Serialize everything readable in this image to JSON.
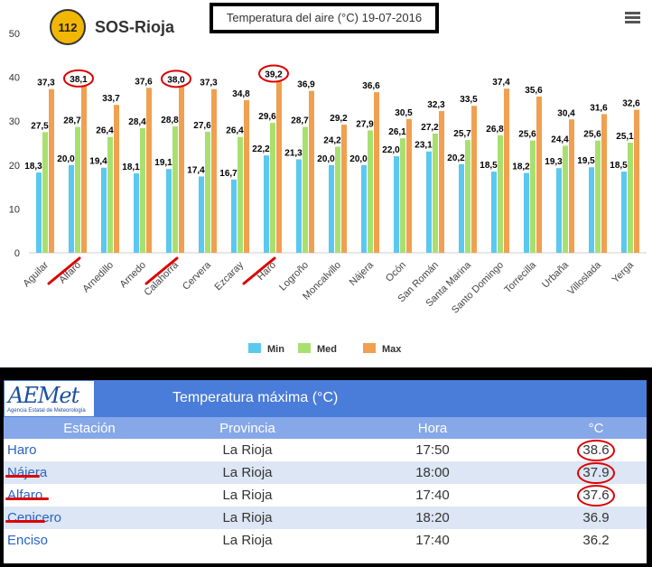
{
  "chart_data": {
    "type": "bar",
    "title": "Temperatura del aire (°C) 19-07-2016",
    "categories": [
      "Aguilar",
      "Alfaro",
      "Arnedillo",
      "Arnedo",
      "Calahorra",
      "Cervera",
      "Ezcaray",
      "Haro",
      "Logroño",
      "Moncalvillo",
      "Nájera",
      "Ocón",
      "San Román",
      "Santa Marina",
      "Santo Domingo",
      "Torrecilla",
      "Urbaña",
      "Villoslada",
      "Yerga"
    ],
    "series": [
      {
        "name": "Min",
        "color": "#5bc8f0",
        "values": [
          18.3,
          20.0,
          19.4,
          18.1,
          19.1,
          17.4,
          16.7,
          22.2,
          21.3,
          20.0,
          20.0,
          22.0,
          23.1,
          20.2,
          18.5,
          18.2,
          19.3,
          19.5,
          18.5
        ]
      },
      {
        "name": "Med",
        "color": "#a8e070",
        "values": [
          27.5,
          28.7,
          26.4,
          28.4,
          28.8,
          27.6,
          26.4,
          29.6,
          28.7,
          24.2,
          27.9,
          26.1,
          27.2,
          25.7,
          26.8,
          25.6,
          24.4,
          25.6,
          25.1
        ]
      },
      {
        "name": "Max",
        "color": "#f0a050",
        "values": [
          37.3,
          38.1,
          33.7,
          37.6,
          38.0,
          37.3,
          34.8,
          39.2,
          36.9,
          29.2,
          36.6,
          30.5,
          32.3,
          33.5,
          37.4,
          35.6,
          30.4,
          31.6,
          32.6
        ]
      }
    ],
    "labels": {
      "Min": [
        "18,3",
        "20,0",
        "19,4",
        "18,1",
        "19,1",
        "17,4",
        "16,7",
        "22,2",
        "21,3",
        "20,0",
        "20,0",
        "22,0",
        "23,1",
        "20,2",
        "18,5",
        "18,2",
        "19,3",
        "19,5",
        "18,5"
      ],
      "Med": [
        "27,5",
        "28,7",
        "26,4",
        "28,4",
        "28,8",
        "27,6",
        "26,4",
        "29,6",
        "28,7",
        "24,2",
        "27,9",
        "26,1",
        "27,2",
        "25,7",
        "26,8",
        "25,6",
        "24,4",
        "25,6",
        "25,1"
      ],
      "Max": [
        "37,3",
        "38,1",
        "33,7",
        "37,6",
        "38,0",
        "37,3",
        "34,8",
        "39,2",
        "36,9",
        "29,2",
        "36,6",
        "30,5",
        "32,3",
        "33,5",
        "37,4",
        "35,6",
        "30,4",
        "31,6",
        "32,6"
      ]
    },
    "yticks": [
      "0",
      "10",
      "20",
      "30",
      "40",
      "50"
    ],
    "ylim": [
      0,
      50
    ],
    "grid": false,
    "legend": "bottom-center",
    "highlighted_max": [
      "Alfaro",
      "Calahorra",
      "Haro"
    ]
  },
  "logo": {
    "badge": "112",
    "text": "SOS-Rioja"
  },
  "menu_icon": "hamburger-menu-icon",
  "aemet": {
    "logo_text": "AEMet",
    "logo_sub": "Agencia Estatal de Meteorología",
    "table_title": "Temperatura máxima (°C)",
    "headers": {
      "station": "Estación",
      "province": "Provincia",
      "hour": "Hora",
      "temp": "°C"
    },
    "rows": [
      {
        "station": "Haro",
        "province": "La Rioja",
        "hour": "17:50",
        "temp": "38.6"
      },
      {
        "station": "Nájera",
        "province": "La Rioja",
        "hour": "18:00",
        "temp": "37.9"
      },
      {
        "station": "Alfaro",
        "province": "La Rioja",
        "hour": "17:40",
        "temp": "37.6"
      },
      {
        "station": "Cenicero",
        "province": "La Rioja",
        "hour": "18:20",
        "temp": "36.9"
      },
      {
        "station": "Enciso",
        "province": "La Rioja",
        "hour": "17:40",
        "temp": "36.2"
      }
    ]
  }
}
